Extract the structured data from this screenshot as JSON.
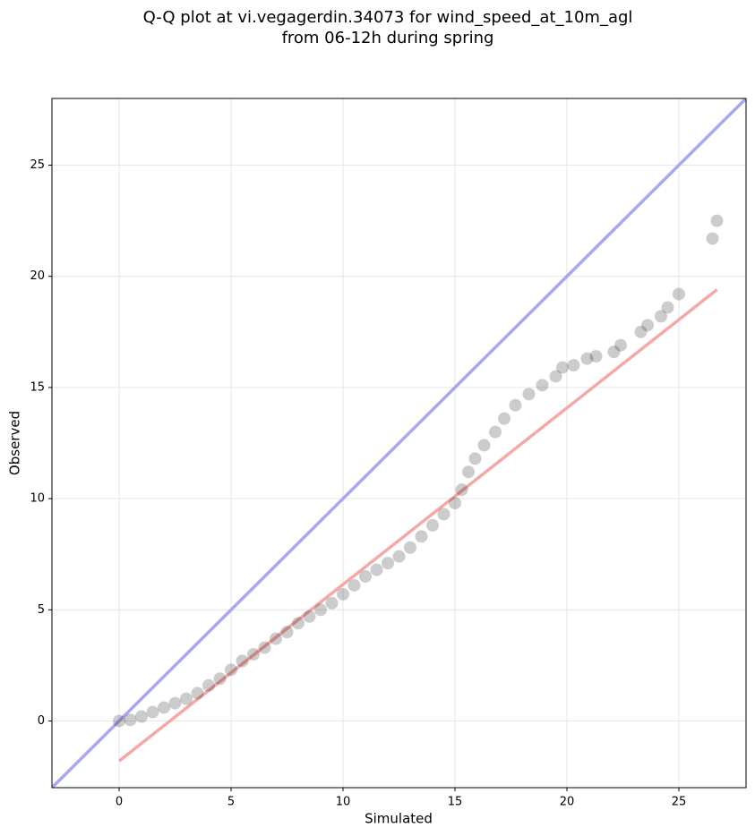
{
  "chart_data": {
    "type": "scatter",
    "title": [
      "Q-Q plot at vi.vegagerdin.34073 for wind_speed_at_10m_agl",
      "from 06-12h during spring"
    ],
    "x_label": "Simulated",
    "y_label": "Observed",
    "xlim": [
      -3,
      28
    ],
    "ylim": [
      -3,
      28
    ],
    "xticks": [
      0,
      5,
      10,
      15,
      20,
      25
    ],
    "yticks": [
      0,
      5,
      10,
      15,
      20,
      25
    ],
    "grid": true,
    "color": "#000000",
    "alpha": 0.2,
    "x": [
      0,
      0.5,
      1,
      1.5,
      2,
      2.5,
      3,
      3.5,
      4,
      4.5,
      5,
      5.5,
      6,
      6.5,
      7,
      7.5,
      8,
      8.5,
      9,
      9.5,
      10,
      10.5,
      11,
      11.5,
      12,
      12.5,
      13,
      13.5,
      14,
      14.5,
      15,
      15.3,
      15.6,
      15.9,
      16.3,
      16.8,
      17.2,
      17.7,
      18.3,
      18.9,
      19.5,
      19.8,
      20.3,
      20.9,
      21.3,
      22.1,
      22.4,
      23.3,
      23.6,
      24.2,
      24.5,
      25,
      26.5,
      26.7
    ],
    "values": [
      0,
      0.05,
      0.2,
      0.4,
      0.6,
      0.8,
      1.0,
      1.25,
      1.6,
      1.9,
      2.3,
      2.7,
      3.0,
      3.3,
      3.7,
      4.0,
      4.4,
      4.7,
      5.0,
      5.3,
      5.7,
      6.1,
      6.5,
      6.8,
      7.1,
      7.4,
      7.8,
      8.3,
      8.8,
      9.3,
      9.8,
      10.4,
      11.2,
      11.8,
      12.4,
      13.0,
      13.6,
      14.2,
      14.7,
      15.1,
      15.5,
      15.9,
      16.0,
      16.3,
      16.4,
      16.6,
      16.9,
      17.5,
      17.8,
      18.2,
      18.6,
      19.2,
      21.7,
      22.5
    ],
    "lines": [
      {
        "color": "#a8a8f0",
        "x": [
          -3,
          28
        ],
        "values": [
          -3,
          28
        ]
      },
      {
        "color": "#f5a8a8",
        "x": [
          0,
          26.7
        ],
        "values": [
          -1.8,
          19.4
        ]
      }
    ]
  }
}
